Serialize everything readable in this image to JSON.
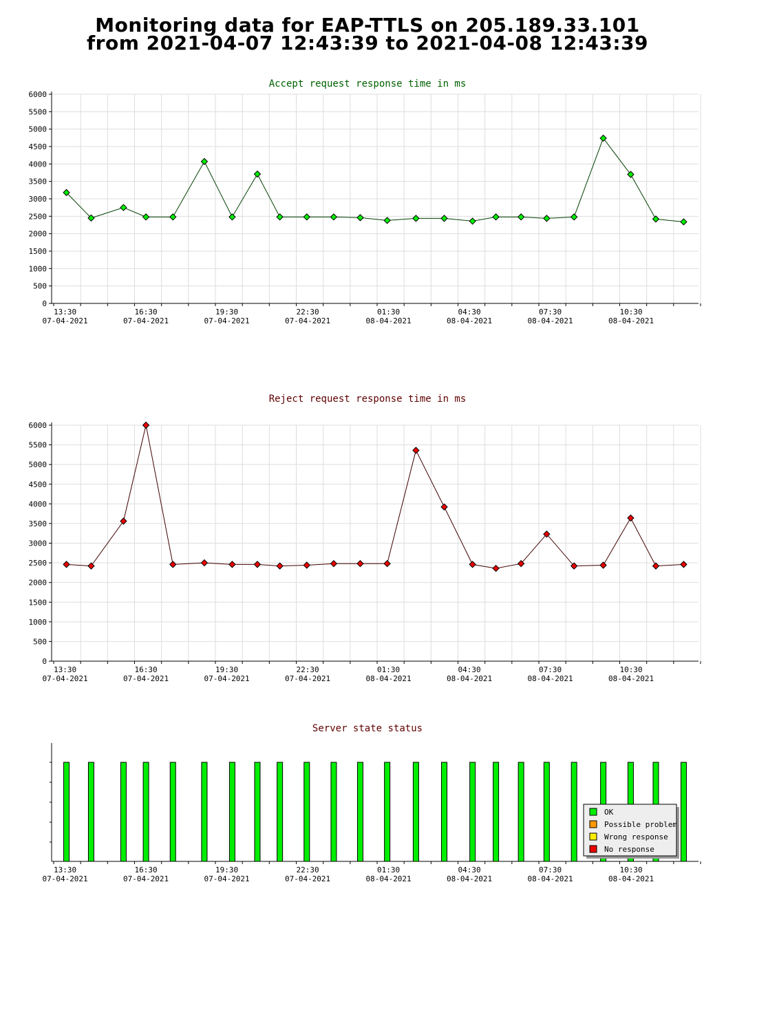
{
  "page": {
    "title_line1": "Monitoring data for EAP-TTLS on 205.189.33.101",
    "title_line2": "from 2021-04-07 12:43:39 to 2021-04-08 12:43:39"
  },
  "colors": {
    "accept_line": "#004000",
    "accept_marker": "#00ee00",
    "accept_title": "#006000",
    "reject_line": "#400000",
    "reject_marker": "#ee0000",
    "reject_title": "#600000",
    "status_title": "#600000",
    "grid": "#dddddd"
  },
  "chart_data": [
    {
      "type": "line",
      "title": "Accept request response time in ms",
      "xlabel": "",
      "ylabel": "",
      "ylim": [
        0,
        6000
      ],
      "y_ticks": [
        0,
        500,
        1000,
        1500,
        2000,
        2500,
        3000,
        3500,
        4000,
        4500,
        5000,
        5500,
        6000
      ],
      "x_ticks": [
        {
          "time": "13:30",
          "date": "07-04-2021"
        },
        {
          "time": "16:30",
          "date": "07-04-2021"
        },
        {
          "time": "19:30",
          "date": "07-04-2021"
        },
        {
          "time": "22:30",
          "date": "07-04-2021"
        },
        {
          "time": "01:30",
          "date": "08-04-2021"
        },
        {
          "time": "04:30",
          "date": "08-04-2021"
        },
        {
          "time": "07:30",
          "date": "08-04-2021"
        },
        {
          "time": "10:30",
          "date": "08-04-2021"
        }
      ],
      "grid": true,
      "series": [
        {
          "x": [
            "2021-04-07 13:33",
            "2021-04-07 14:28",
            "2021-04-07 15:40",
            "2021-04-07 16:30",
            "2021-04-07 17:30",
            "2021-04-07 18:40",
            "2021-04-07 19:42",
            "2021-04-07 20:38",
            "2021-04-07 21:28",
            "2021-04-07 22:28",
            "2021-04-07 23:28",
            "2021-04-08 00:27",
            "2021-04-08 01:27",
            "2021-04-08 02:31",
            "2021-04-08 03:34",
            "2021-04-08 04:37",
            "2021-04-08 05:29",
            "2021-04-08 06:25",
            "2021-04-08 07:22",
            "2021-04-08 08:23",
            "2021-04-08 09:28",
            "2021-04-08 10:29",
            "2021-04-08 11:25",
            "2021-04-08 12:27"
          ],
          "values": [
            3180,
            2450,
            2750,
            2480,
            2480,
            4070,
            2480,
            3710,
            2480,
            2480,
            2480,
            2460,
            2380,
            2440,
            2440,
            2360,
            2480,
            2480,
            2440,
            2480,
            4740,
            3700,
            2420,
            2340
          ]
        }
      ]
    },
    {
      "type": "line",
      "title": "Reject request response time in ms",
      "xlabel": "",
      "ylabel": "",
      "ylim": [
        0,
        6000
      ],
      "y_ticks": [
        0,
        500,
        1000,
        1500,
        2000,
        2500,
        3000,
        3500,
        4000,
        4500,
        5000,
        5500,
        6000
      ],
      "x_ticks": [
        {
          "time": "13:30",
          "date": "07-04-2021"
        },
        {
          "time": "16:30",
          "date": "07-04-2021"
        },
        {
          "time": "19:30",
          "date": "07-04-2021"
        },
        {
          "time": "22:30",
          "date": "07-04-2021"
        },
        {
          "time": "01:30",
          "date": "08-04-2021"
        },
        {
          "time": "04:30",
          "date": "08-04-2021"
        },
        {
          "time": "07:30",
          "date": "08-04-2021"
        },
        {
          "time": "10:30",
          "date": "08-04-2021"
        }
      ],
      "grid": true,
      "series": [
        {
          "x": [
            "2021-04-07 13:33",
            "2021-04-07 14:28",
            "2021-04-07 15:40",
            "2021-04-07 16:30",
            "2021-04-07 17:30",
            "2021-04-07 18:40",
            "2021-04-07 19:42",
            "2021-04-07 20:38",
            "2021-04-07 21:28",
            "2021-04-07 22:28",
            "2021-04-07 23:28",
            "2021-04-08 00:27",
            "2021-04-08 01:27",
            "2021-04-08 02:31",
            "2021-04-08 03:34",
            "2021-04-08 04:37",
            "2021-04-08 05:29",
            "2021-04-08 06:25",
            "2021-04-08 07:22",
            "2021-04-08 08:23",
            "2021-04-08 09:28",
            "2021-04-08 10:29",
            "2021-04-08 11:25",
            "2021-04-08 12:27"
          ],
          "values": [
            2460,
            2420,
            3560,
            6000,
            2460,
            2500,
            2460,
            2460,
            2420,
            2440,
            2480,
            2480,
            2480,
            5360,
            3920,
            2460,
            2360,
            2480,
            3230,
            2420,
            2440,
            3640,
            2420,
            2460
          ]
        }
      ]
    },
    {
      "type": "bar",
      "title": "Server state status",
      "x_ticks": [
        {
          "time": "13:30",
          "date": "07-04-2021"
        },
        {
          "time": "16:30",
          "date": "07-04-2021"
        },
        {
          "time": "19:30",
          "date": "07-04-2021"
        },
        {
          "time": "22:30",
          "date": "07-04-2021"
        },
        {
          "time": "01:30",
          "date": "08-04-2021"
        },
        {
          "time": "04:30",
          "date": "08-04-2021"
        },
        {
          "time": "07:30",
          "date": "08-04-2021"
        },
        {
          "time": "10:30",
          "date": "08-04-2021"
        }
      ],
      "legend_position": "bottom-right",
      "legend": [
        {
          "label": "OK",
          "color": "#00ee00"
        },
        {
          "label": "Possible problem",
          "color": "#ff9900"
        },
        {
          "label": "Wrong response",
          "color": "#ffee00"
        },
        {
          "label": "No response",
          "color": "#ee0000"
        }
      ],
      "x": [
        "2021-04-07 13:33",
        "2021-04-07 14:28",
        "2021-04-07 15:40",
        "2021-04-07 16:30",
        "2021-04-07 17:30",
        "2021-04-07 18:40",
        "2021-04-07 19:42",
        "2021-04-07 20:38",
        "2021-04-07 21:28",
        "2021-04-07 22:28",
        "2021-04-07 23:28",
        "2021-04-08 00:27",
        "2021-04-08 01:27",
        "2021-04-08 02:31",
        "2021-04-08 03:34",
        "2021-04-08 04:37",
        "2021-04-08 05:29",
        "2021-04-08 06:25",
        "2021-04-08 07:22",
        "2021-04-08 08:23",
        "2021-04-08 09:28",
        "2021-04-08 10:29",
        "2021-04-08 11:25",
        "2021-04-08 12:27"
      ],
      "states": [
        "OK",
        "OK",
        "OK",
        "OK",
        "OK",
        "OK",
        "OK",
        "OK",
        "OK",
        "OK",
        "OK",
        "OK",
        "OK",
        "OK",
        "OK",
        "OK",
        "OK",
        "OK",
        "OK",
        "OK",
        "OK",
        "OK",
        "OK",
        "OK"
      ]
    }
  ]
}
